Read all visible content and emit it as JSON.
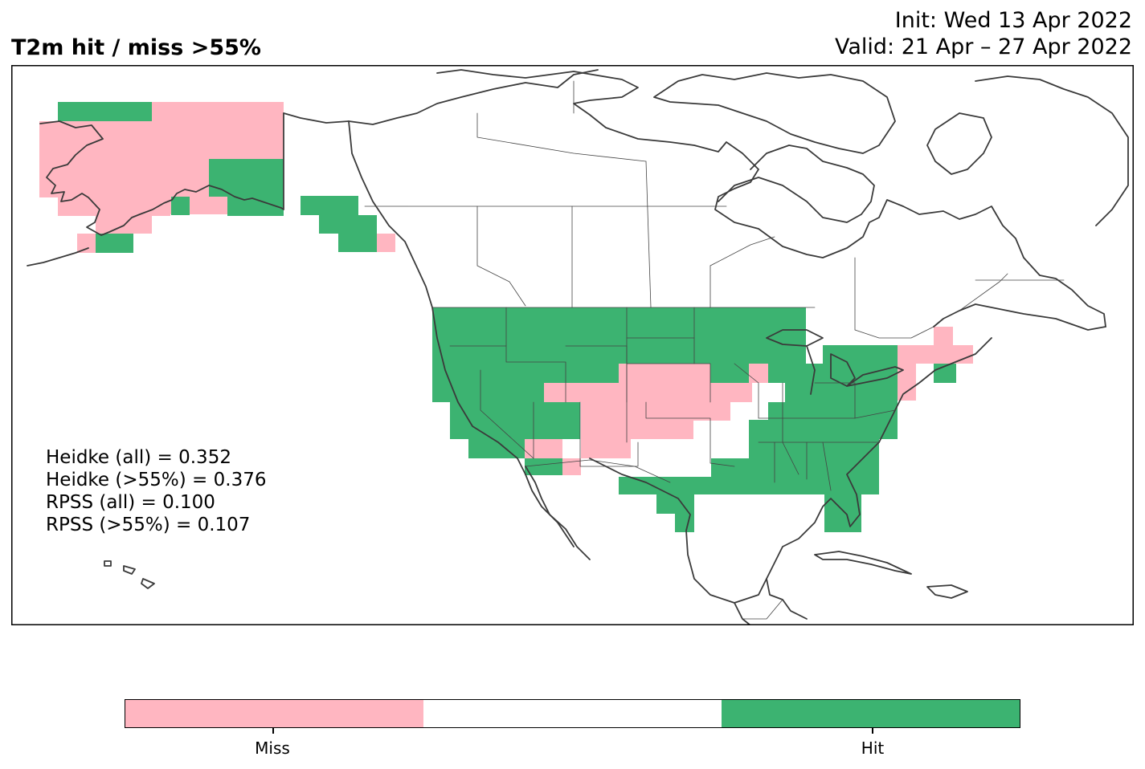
{
  "header": {
    "title": "T2m hit / miss  >55%",
    "init": "Init: Wed 13 Apr 2022",
    "valid": "Valid: 21 Apr – 27 Apr 2022"
  },
  "stats": [
    "Heidke (all) = 0.352",
    "Heidke (>55%) = 0.376",
    "RPSS (all) = 0.100",
    "RPSS (>55%) = 0.107"
  ],
  "colors": {
    "miss": "#ffb6c1",
    "neutral": "#ffffff",
    "hit": "#3cb371",
    "coast": "#3a3a3a",
    "border": "#444444"
  },
  "legend": {
    "miss_label": "Miss",
    "hit_label": "Hit"
  }
}
